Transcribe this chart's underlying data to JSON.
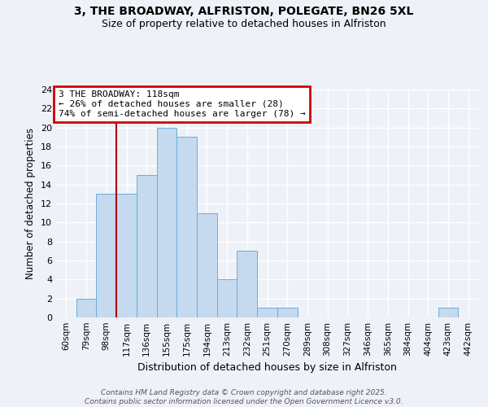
{
  "title_line1": "3, THE BROADWAY, ALFRISTON, POLEGATE, BN26 5XL",
  "title_line2": "Size of property relative to detached houses in Alfriston",
  "xlabel": "Distribution of detached houses by size in Alfriston",
  "ylabel": "Number of detached properties",
  "categories": [
    "60sqm",
    "79sqm",
    "98sqm",
    "117sqm",
    "136sqm",
    "155sqm",
    "175sqm",
    "194sqm",
    "213sqm",
    "232sqm",
    "251sqm",
    "270sqm",
    "289sqm",
    "308sqm",
    "327sqm",
    "346sqm",
    "365sqm",
    "384sqm",
    "404sqm",
    "423sqm",
    "442sqm"
  ],
  "values": [
    0,
    2,
    13,
    13,
    15,
    20,
    19,
    11,
    4,
    7,
    1,
    1,
    0,
    0,
    0,
    0,
    0,
    0,
    0,
    1,
    0
  ],
  "bar_color": "#c5d9ef",
  "bar_edge_color": "#6baed6",
  "ylim": [
    0,
    24
  ],
  "yticks": [
    0,
    2,
    4,
    6,
    8,
    10,
    12,
    14,
    16,
    18,
    20,
    22,
    24
  ],
  "vline_index": 3,
  "vline_color": "#aa0000",
  "annotation_text": "3 THE BROADWAY: 118sqm\n← 26% of detached houses are smaller (28)\n74% of semi-detached houses are larger (78) →",
  "annotation_box_color": "#cc0000",
  "footer_text": "Contains HM Land Registry data © Crown copyright and database right 2025.\nContains public sector information licensed under the Open Government Licence v3.0.",
  "background_color": "#eef2f8",
  "grid_color": "#ffffff"
}
